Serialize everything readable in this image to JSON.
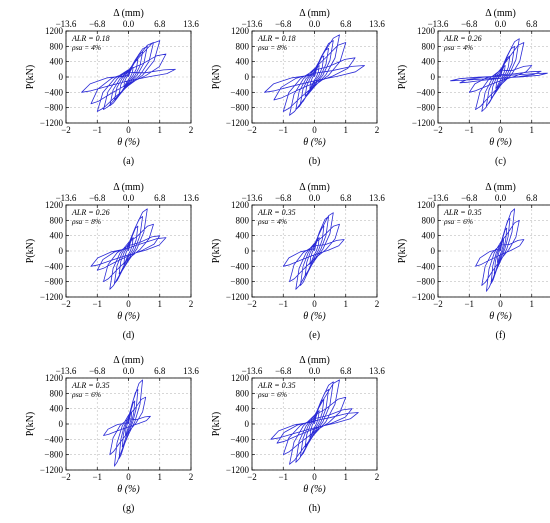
{
  "figure": {
    "colors": {
      "curve": "#2a2ad6",
      "axis": "#000000",
      "grid": "#bfbfbf"
    },
    "ylabel": "P(kN)",
    "xlabel": "θ (%)",
    "top_axis_label": "Δ (mm)"
  },
  "chart_data": [
    {
      "type": "line",
      "panel_label": "(a)",
      "annotation": [
        "ALR = 0.18",
        "ρsa = 4%"
      ],
      "xlim": [
        -2,
        2
      ],
      "ylim": [
        -1200,
        1200
      ],
      "xticks": [
        -2,
        -1,
        0,
        1,
        2
      ],
      "yticks": [
        -1200,
        -800,
        -400,
        0,
        400,
        800,
        1200
      ],
      "top_ticks": [
        "−13.6",
        "−6.8",
        "0.0",
        "6.8",
        "13.6"
      ],
      "grid": true,
      "series": [
        {
          "peaks": [
            [
              0.15,
              250,
              -0.15,
              -250
            ],
            [
              0.3,
              450,
              -0.3,
              -450
            ],
            [
              0.45,
              650,
              -0.45,
              -600
            ],
            [
              0.6,
              800,
              -0.6,
              -750
            ],
            [
              0.8,
              900,
              -0.8,
              -850
            ],
            [
              1.0,
              950,
              -1.0,
              -900
            ],
            [
              1.2,
              600,
              -1.2,
              -700
            ],
            [
              1.5,
              200,
              -1.5,
              -400
            ]
          ]
        }
      ]
    },
    {
      "type": "line",
      "panel_label": "(b)",
      "annotation": [
        "ALR = 0.18",
        "ρsa = 8%"
      ],
      "xlim": [
        -2,
        2
      ],
      "ylim": [
        -1200,
        1200
      ],
      "xticks": [
        -2,
        -1,
        0,
        1,
        2
      ],
      "yticks": [
        -1200,
        -800,
        -400,
        0,
        400,
        800,
        1200
      ],
      "top_ticks": [
        "−13.6",
        "−6.8",
        "0.0",
        "6.8",
        "13.6"
      ],
      "grid": true,
      "series": [
        {
          "peaks": [
            [
              0.15,
              300,
              -0.15,
              -300
            ],
            [
              0.3,
              550,
              -0.3,
              -500
            ],
            [
              0.45,
              750,
              -0.45,
              -700
            ],
            [
              0.6,
              950,
              -0.6,
              -850
            ],
            [
              0.8,
              1100,
              -0.8,
              -1000
            ],
            [
              1.0,
              900,
              -1.0,
              -900
            ],
            [
              1.3,
              500,
              -1.3,
              -600
            ],
            [
              1.6,
              300,
              -1.6,
              -400
            ]
          ]
        }
      ]
    },
    {
      "type": "line",
      "panel_label": "(c)",
      "annotation": [
        "ALR = 0.26",
        "ρsa = 4%"
      ],
      "xlim": [
        -2,
        2
      ],
      "ylim": [
        -1200,
        1200
      ],
      "xticks": [
        -2,
        -1,
        0,
        1,
        2
      ],
      "yticks": [
        -1200,
        -800,
        -400,
        0,
        400,
        800,
        1200
      ],
      "top_ticks": [
        "−13.6",
        "−6.8",
        "0.0",
        "6.8",
        "13.6"
      ],
      "grid": true,
      "series": [
        {
          "peaks": [
            [
              0.15,
              300,
              -0.15,
              -300
            ],
            [
              0.3,
              550,
              -0.3,
              -550
            ],
            [
              0.45,
              800,
              -0.45,
              -750
            ],
            [
              0.6,
              1000,
              -0.6,
              -900
            ],
            [
              0.75,
              900,
              -0.8,
              -850
            ],
            [
              1.0,
              300,
              -1.0,
              -400
            ],
            [
              1.3,
              150,
              -1.3,
              -150
            ],
            [
              1.5,
              100,
              -1.6,
              -100
            ]
          ]
        }
      ]
    },
    {
      "type": "line",
      "panel_label": "(d)",
      "annotation": [
        "ALR = 0.26",
        "ρsa = 8%"
      ],
      "xlim": [
        -2,
        2
      ],
      "ylim": [
        -1200,
        1200
      ],
      "xticks": [
        -2,
        -1,
        0,
        1,
        2
      ],
      "yticks": [
        -1200,
        -800,
        -400,
        0,
        400,
        800,
        1200
      ],
      "top_ticks": [
        "−13.6",
        "−6.8",
        "0.0",
        "6.8",
        "13.6"
      ],
      "grid": true,
      "series": [
        {
          "peaks": [
            [
              0.15,
              350,
              -0.15,
              -350
            ],
            [
              0.3,
              650,
              -0.3,
              -600
            ],
            [
              0.45,
              900,
              -0.45,
              -850
            ],
            [
              0.6,
              1100,
              -0.6,
              -1000
            ],
            [
              0.8,
              700,
              -0.8,
              -800
            ],
            [
              1.0,
              400,
              -1.0,
              -500
            ],
            [
              1.2,
              350,
              -1.2,
              -400
            ]
          ]
        }
      ]
    },
    {
      "type": "line",
      "panel_label": "(e)",
      "annotation": [
        "ALR = 0.35",
        "ρsa = 4%"
      ],
      "xlim": [
        -2,
        2
      ],
      "ylim": [
        -1200,
        1200
      ],
      "xticks": [
        -2,
        -1,
        0,
        1,
        2
      ],
      "yticks": [
        -1200,
        -800,
        -400,
        0,
        400,
        800,
        1200
      ],
      "top_ticks": [
        "−13.6",
        "−6.8",
        "0.0",
        "6.8",
        "13.6"
      ],
      "grid": true,
      "series": [
        {
          "peaks": [
            [
              0.15,
              350,
              -0.15,
              -350
            ],
            [
              0.3,
              650,
              -0.3,
              -650
            ],
            [
              0.45,
              900,
              -0.45,
              -900
            ],
            [
              0.6,
              1000,
              -0.6,
              -1000
            ],
            [
              0.8,
              700,
              -0.8,
              -800
            ],
            [
              0.95,
              300,
              -1.0,
              -400
            ]
          ]
        }
      ]
    },
    {
      "type": "line",
      "panel_label": "(f)",
      "annotation": [
        "ALR = 0.35",
        "ρsa = 6%"
      ],
      "xlim": [
        -2,
        2
      ],
      "ylim": [
        -1200,
        1200
      ],
      "xticks": [
        -2,
        -1,
        0,
        1,
        2
      ],
      "yticks": [
        -1200,
        -800,
        -400,
        0,
        400,
        800,
        1200
      ],
      "top_ticks": [
        "−13.6",
        "−6.8",
        "0.0",
        "6.8",
        "13.6"
      ],
      "grid": true,
      "series": [
        {
          "peaks": [
            [
              0.1,
              300,
              -0.1,
              -300
            ],
            [
              0.2,
              600,
              -0.2,
              -600
            ],
            [
              0.3,
              850,
              -0.3,
              -850
            ],
            [
              0.45,
              1100,
              -0.45,
              -1050
            ],
            [
              0.6,
              800,
              -0.6,
              -900
            ],
            [
              0.75,
              300,
              -0.8,
              -400
            ]
          ]
        }
      ]
    },
    {
      "type": "line",
      "panel_label": "(g)",
      "annotation": [
        "ALR = 0.35",
        "ρsa = 6%"
      ],
      "xlim": [
        -2,
        2
      ],
      "ylim": [
        -1200,
        1200
      ],
      "xticks": [
        -2,
        -1,
        0,
        1,
        2
      ],
      "yticks": [
        -1200,
        -800,
        -400,
        0,
        400,
        800,
        1200
      ],
      "top_ticks": [
        "−13.6",
        "−6.8",
        "0.0",
        "6.8",
        "13.6"
      ],
      "grid": true,
      "series": [
        {
          "peaks": [
            [
              0.1,
              300,
              -0.1,
              -300
            ],
            [
              0.2,
              600,
              -0.2,
              -600
            ],
            [
              0.3,
              900,
              -0.3,
              -900
            ],
            [
              0.45,
              1150,
              -0.45,
              -1100
            ],
            [
              0.55,
              700,
              -0.6,
              -800
            ],
            [
              0.7,
              200,
              -0.8,
              -300
            ]
          ]
        }
      ]
    },
    {
      "type": "line",
      "panel_label": "(h)",
      "annotation": [
        "ALR = 0.35",
        "ρsa = 6%"
      ],
      "xlim": [
        -2,
        2
      ],
      "ylim": [
        -1200,
        1200
      ],
      "xticks": [
        -2,
        -1,
        0,
        1,
        2
      ],
      "yticks": [
        -1200,
        -800,
        -400,
        0,
        400,
        800,
        1200
      ],
      "top_ticks": [
        "−13.6",
        "−6.8",
        "0.0",
        "6.8",
        "13.6"
      ],
      "grid": true,
      "series": [
        {
          "peaks": [
            [
              0.15,
              350,
              -0.15,
              -350
            ],
            [
              0.3,
              650,
              -0.3,
              -600
            ],
            [
              0.45,
              900,
              -0.45,
              -850
            ],
            [
              0.6,
              1100,
              -0.6,
              -1000
            ],
            [
              0.8,
              1150,
              -0.8,
              -1050
            ],
            [
              1.0,
              700,
              -1.0,
              -800
            ],
            [
              1.2,
              400,
              -1.2,
              -500
            ],
            [
              1.4,
              300,
              -1.4,
              -400
            ]
          ]
        }
      ]
    }
  ]
}
